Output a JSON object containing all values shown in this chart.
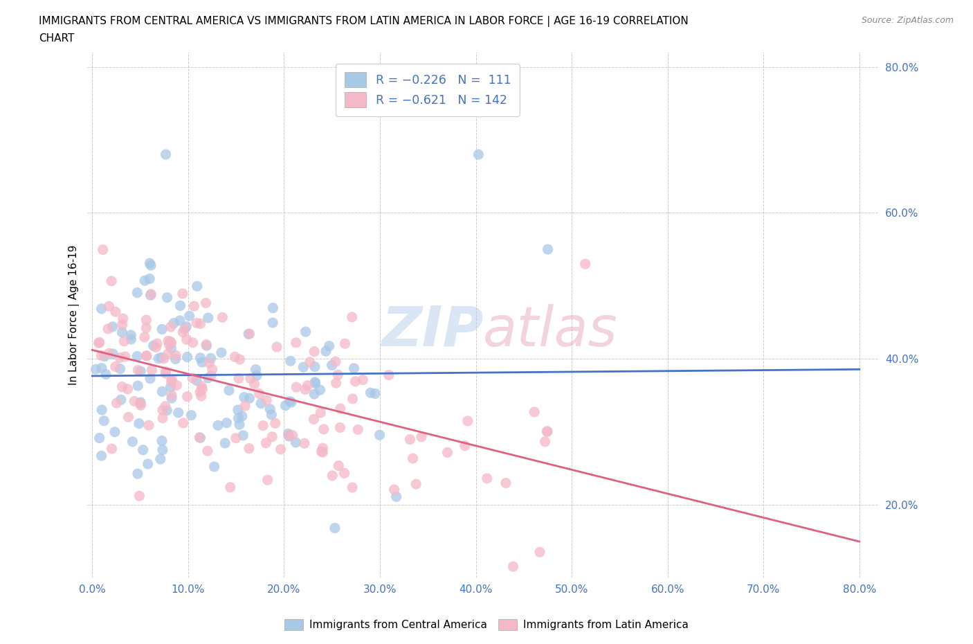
{
  "title_line1": "IMMIGRANTS FROM CENTRAL AMERICA VS IMMIGRANTS FROM LATIN AMERICA IN LABOR FORCE | AGE 16-19 CORRELATION",
  "title_line2": "CHART",
  "source_text": "Source: ZipAtlas.com",
  "ylabel": "In Labor Force | Age 16-19",
  "legend_label_1": "Immigrants from Central America",
  "legend_label_2": "Immigrants from Latin America",
  "r1": -0.226,
  "n1": 111,
  "r2": -0.621,
  "n2": 142,
  "color1": "#a8c8e8",
  "color2": "#f4b8c8",
  "line_color1": "#4472c4",
  "line_color2": "#e06080",
  "tick_color": "#4472c4",
  "watermark": "ZIPatlas",
  "xlim_min": 0.0,
  "xlim_max": 0.8,
  "ylim_min": 0.1,
  "ylim_max": 0.82,
  "background_color": "#ffffff",
  "grid_color": "#cccccc",
  "title_fontsize": 11,
  "axis_fontsize": 11
}
